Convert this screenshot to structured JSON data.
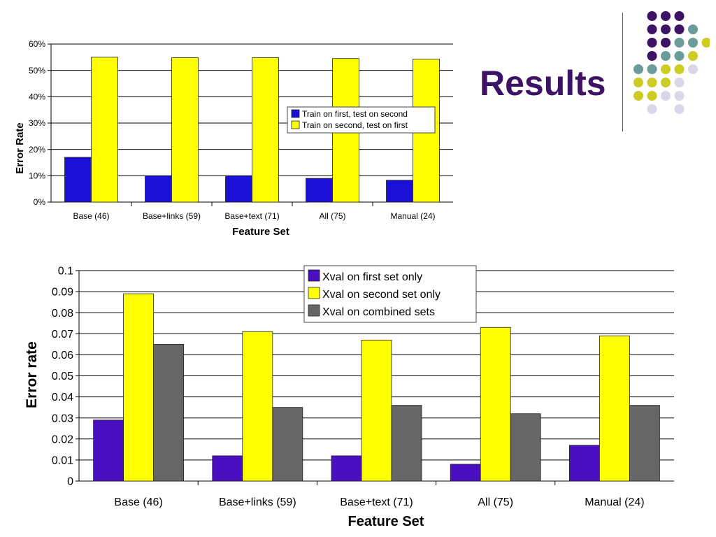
{
  "slide": {
    "title": "Results",
    "dot_colors": {
      "purple": "#3d1366",
      "teal": "#6b9c9c",
      "olive": "#cccc22",
      "lavender": "#d8d8ea"
    },
    "dot_pattern": [
      [
        null,
        "purple",
        "purple",
        "purple",
        null
      ],
      [
        null,
        "purple",
        "purple",
        "purple",
        "teal"
      ],
      [
        null,
        "purple",
        "purple",
        "teal",
        "teal",
        "olive"
      ],
      [
        null,
        "purple",
        "teal",
        "teal",
        "olive",
        null
      ],
      [
        "teal",
        "teal",
        "olive",
        "olive",
        "lavender",
        null
      ],
      [
        "olive",
        "olive",
        "olive",
        "lavender",
        null,
        null
      ],
      [
        "olive",
        "olive",
        "lavender",
        "lavender",
        null,
        null
      ],
      [
        null,
        "lavender",
        null,
        "lavender",
        null,
        null
      ]
    ]
  },
  "chart_data": [
    {
      "type": "bar",
      "title": "",
      "xlabel": "Feature Set",
      "ylabel": "Error Rate",
      "ylim": [
        0,
        60
      ],
      "y_ticks": [
        "0%",
        "10%",
        "20%",
        "30%",
        "40%",
        "50%",
        "60%"
      ],
      "grid": true,
      "legend_position": "right-middle",
      "categories": [
        "Base (46)",
        "Base+links (59)",
        "Base+text (71)",
        "All (75)",
        "Manual (24)"
      ],
      "series": [
        {
          "name": "Train on first, test on second",
          "color": "#1a10d8",
          "values": [
            17,
            10,
            10,
            9,
            8.3
          ]
        },
        {
          "name": "Train on second, test on first",
          "color": "#ffff00",
          "values": [
            55,
            54.8,
            54.8,
            54.5,
            54.3
          ]
        }
      ]
    },
    {
      "type": "bar",
      "title": "",
      "xlabel": "Feature Set",
      "ylabel": "Error rate",
      "ylim": [
        0,
        0.1
      ],
      "y_ticks": [
        "0",
        "0.01",
        "0.02",
        "0.03",
        "0.04",
        "0.05",
        "0.06",
        "0.07",
        "0.08",
        "0.09",
        "0.1"
      ],
      "grid": true,
      "legend_position": "top-center",
      "categories": [
        "Base (46)",
        "Base+links (59)",
        "Base+text (71)",
        "All (75)",
        "Manual (24)"
      ],
      "series": [
        {
          "name": "Xval on first set only",
          "color": "#4a0fc0",
          "values": [
            0.029,
            0.012,
            0.012,
            0.008,
            0.017
          ]
        },
        {
          "name": "Xval on second set only",
          "color": "#ffff00",
          "values": [
            0.089,
            0.071,
            0.067,
            0.073,
            0.069
          ]
        },
        {
          "name": "Xval on combined sets",
          "color": "#666666",
          "values": [
            0.065,
            0.035,
            0.036,
            0.032,
            0.036
          ]
        }
      ]
    }
  ]
}
